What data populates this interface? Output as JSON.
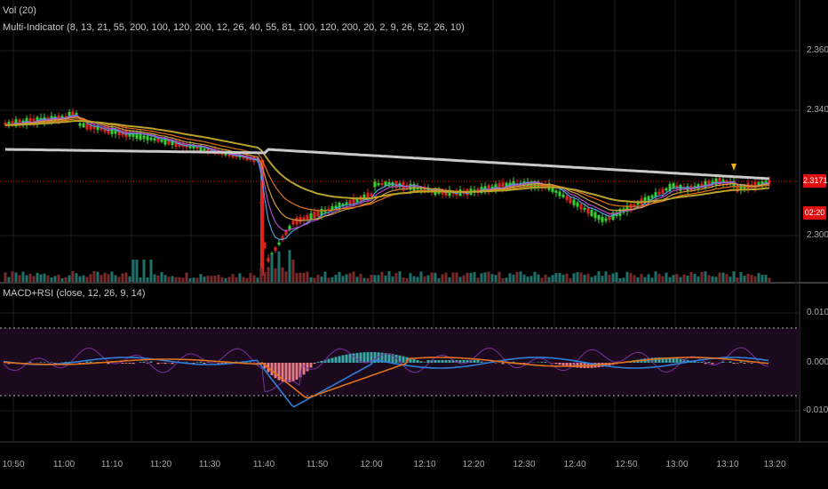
{
  "volume_label": "Vol (20)",
  "multi_indicator_label": "Multi-Indicator (8, 13, 21, 55, 200, 100, 120, 200, 12, 26, 40, 55, 81, 100, 120, 200, 20, 2, 9, 26, 52, 26, 10)",
  "macd_rsi_label": "MACD+RSI (close, 12, 26, 9, 14)",
  "price_axis": [
    "2.3600",
    "2.3400",
    "2.3000"
  ],
  "current_price_tag": "2.3171",
  "countdown_tag": "02:20",
  "macd_axis": [
    "0.0100",
    "0.0000",
    "-0.0100"
  ],
  "time_axis": [
    "10:50",
    "11:00",
    "11:10",
    "11:20",
    "11:30",
    "11:40",
    "11:50",
    "12:00",
    "12:10",
    "12:20",
    "12:30",
    "12:40",
    "12:50",
    "13:00",
    "13:10",
    "13:20"
  ],
  "colors": {
    "up_candle": "#33d12f",
    "down_candle": "#e0241c",
    "ma_white": "#c9c9c9",
    "ma_yellow": "#b8a22a",
    "macd_line": "#2f7fd8",
    "signal_line": "#e0721c",
    "rsi_line": "#7a2fa0",
    "price_line": "#e01010"
  }
}
